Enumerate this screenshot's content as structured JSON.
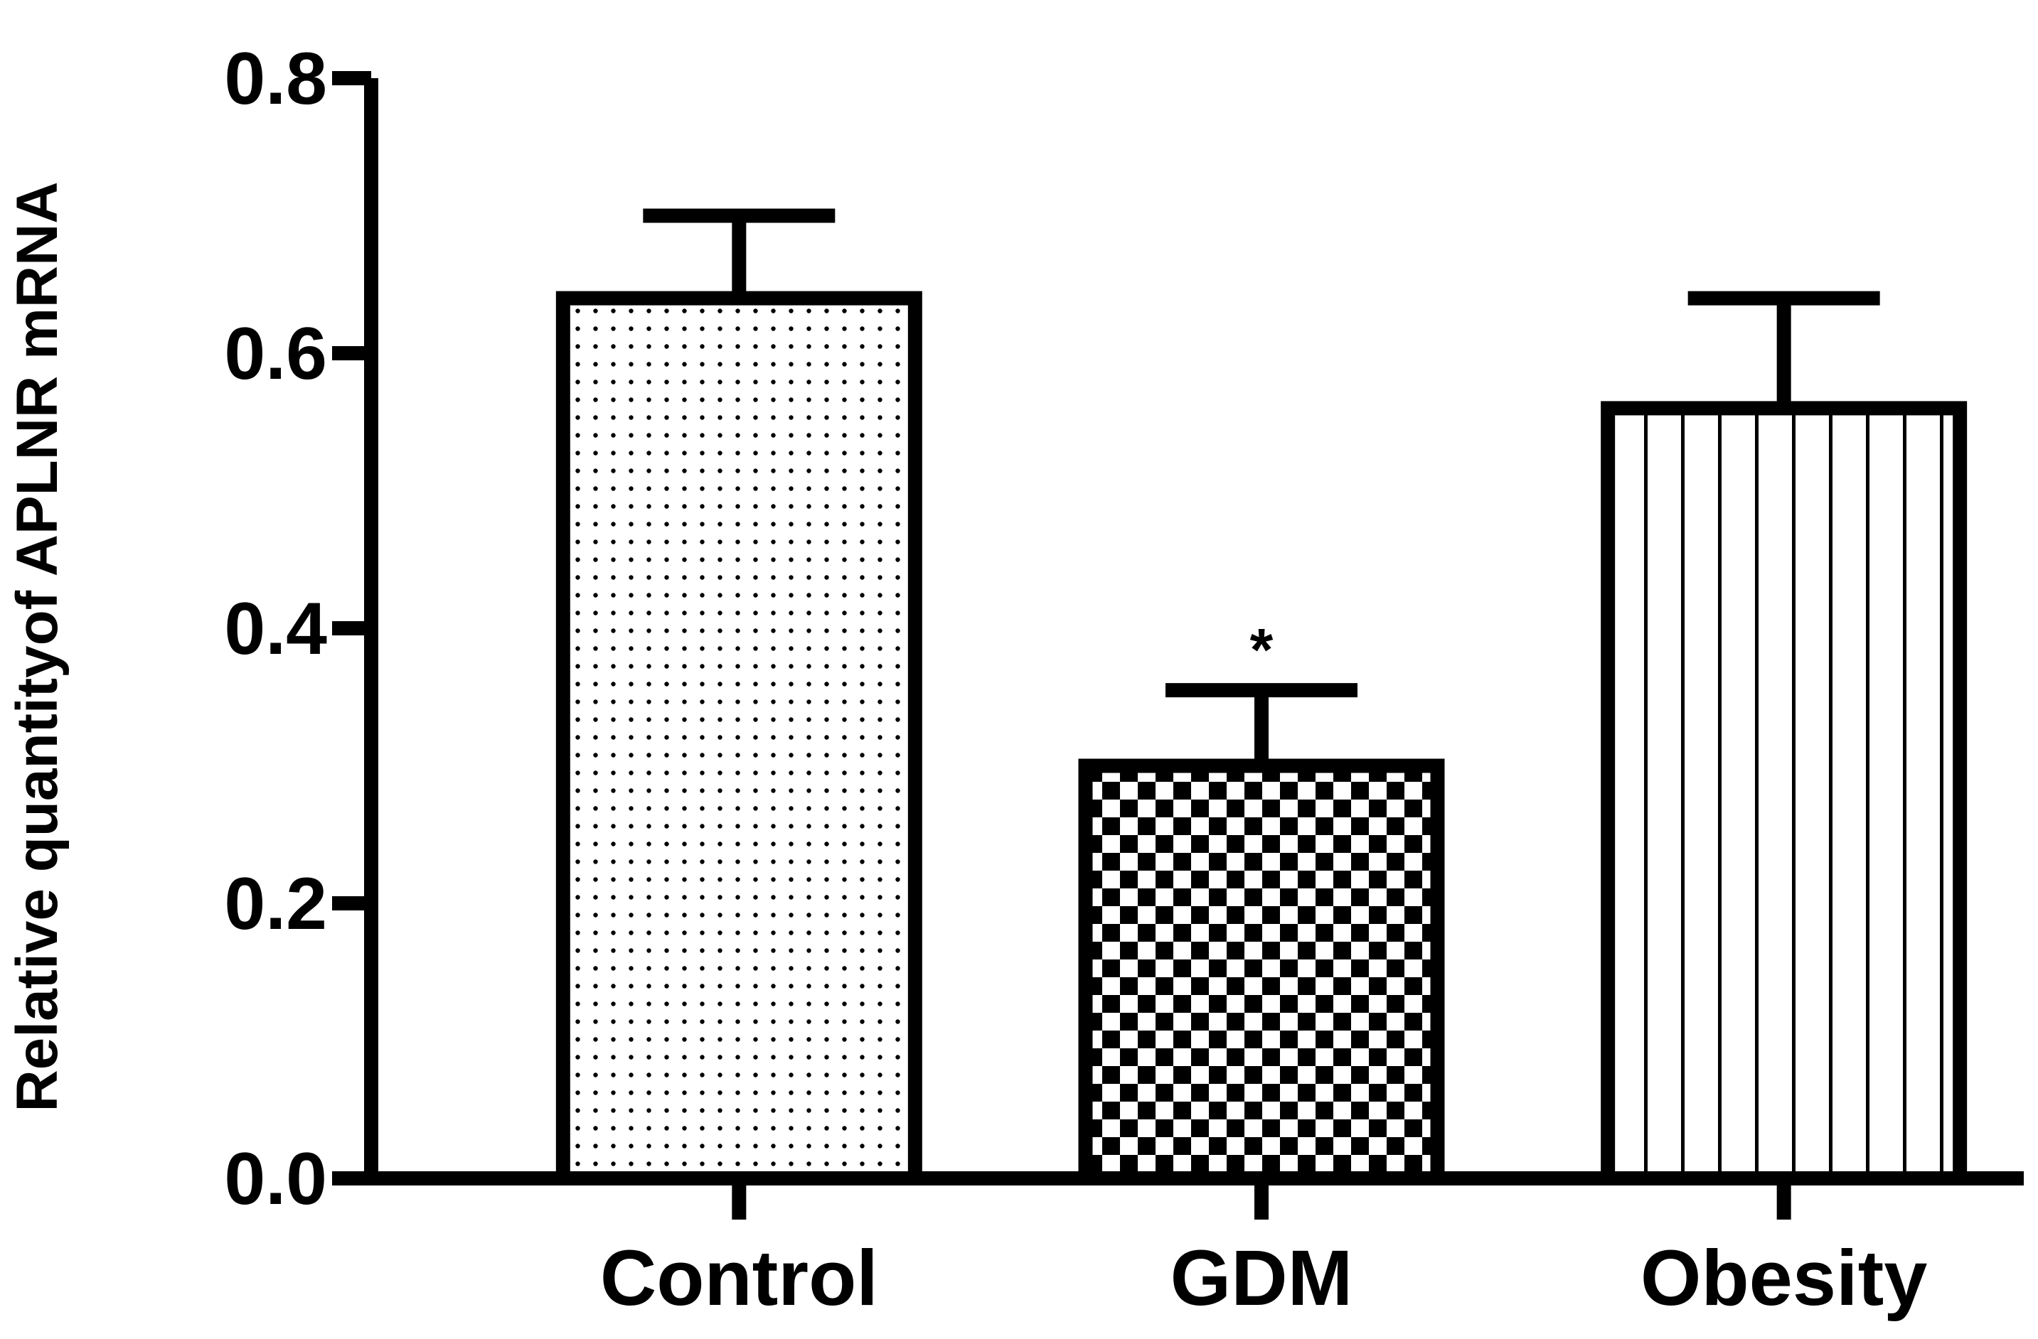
{
  "chart_data": {
    "type": "bar",
    "categories": [
      "Control",
      "GDM",
      "Obesity"
    ],
    "values": [
      0.64,
      0.3,
      0.56
    ],
    "errors": [
      0.06,
      0.055,
      0.08
    ],
    "patterns": [
      "dots",
      "checker",
      "vertical-lines"
    ],
    "annotations": [
      "",
      "*",
      ""
    ],
    "ylabel": "Relative quantityof APLNR mRNA",
    "xlabel": "",
    "title": "",
    "ylim": [
      0,
      0.8
    ],
    "yticks": [
      "0.0",
      "0.2",
      "0.4",
      "0.6",
      "0.8"
    ],
    "grid": false,
    "legend": "none",
    "colors": {
      "stroke": "#000000",
      "fill": "#ffffff"
    }
  }
}
